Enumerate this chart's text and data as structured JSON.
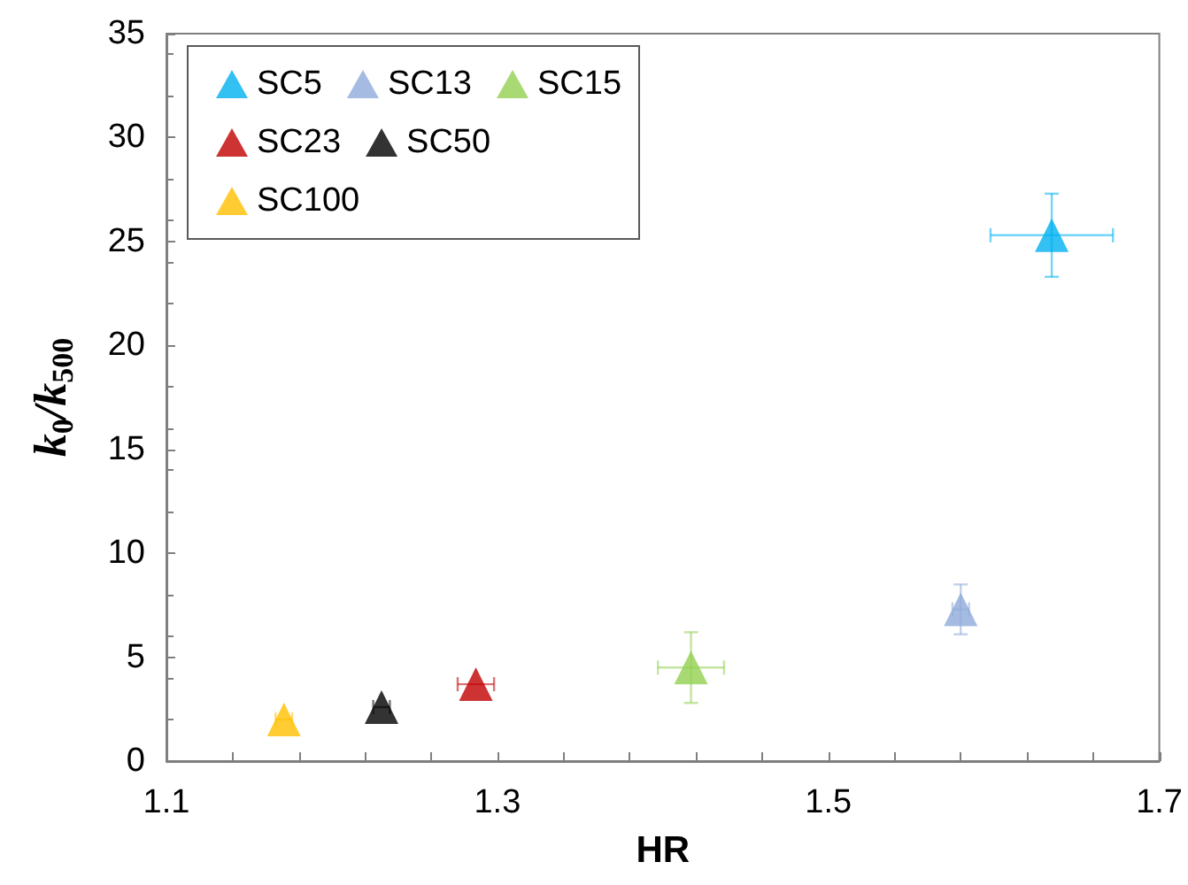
{
  "chart_data": {
    "type": "scatter",
    "xlabel": "HR",
    "ylabel": "k$_{0}$/k$_{500}$",
    "marker": "triangle",
    "legend": "top left",
    "grid": false,
    "xlim": [
      1.1,
      1.7
    ],
    "ylim": [
      0,
      35
    ],
    "xticks": [
      1.1,
      {
        "value": 1.14,
        "label": null
      },
      {
        "value": 1.18,
        "label": null
      },
      {
        "value": 1.22,
        "label": null
      },
      {
        "value": 1.26,
        "label": null
      },
      1.3,
      {
        "value": 1.34,
        "label": null
      },
      {
        "value": 1.38,
        "label": null
      },
      {
        "value": 1.42,
        "label": null
      },
      {
        "value": 1.46,
        "label": null
      },
      1.5,
      {
        "value": 1.54,
        "label": null
      },
      {
        "value": 1.58,
        "label": null
      },
      {
        "value": 1.62,
        "label": null
      },
      {
        "value": 1.66,
        "label": null
      },
      1.7
    ],
    "yticks": [
      0,
      5,
      10,
      15,
      20,
      25,
      30,
      35
    ],
    "series": [
      {
        "name": "SC5",
        "color": "#00b0f0",
        "x": [
          1.635
        ],
        "values": [
          25.3
        ],
        "errors": [
          2.0
        ],
        "xerrors": [
          0.037
        ]
      },
      {
        "name": "SC13",
        "color": "#8eaadb",
        "x": [
          1.58
        ],
        "values": [
          7.3
        ],
        "errors": [
          1.2
        ],
        "xerrors": [
          0.005
        ]
      },
      {
        "name": "SC15",
        "color": "#92d050",
        "x": [
          1.417
        ],
        "values": [
          4.5
        ],
        "errors": [
          1.7
        ],
        "xerrors": [
          0.02
        ]
      },
      {
        "name": "SC23",
        "color": "#c00000",
        "x": [
          1.287
        ],
        "values": [
          3.7
        ],
        "errors": [
          null
        ],
        "xerrors": [
          0.011
        ]
      },
      {
        "name": "SC50",
        "color": "#000000",
        "x": [
          1.23
        ],
        "values": [
          2.6
        ],
        "errors": [
          null
        ],
        "xerrors": [
          0.005
        ]
      },
      {
        "name": "SC100",
        "color": "#ffc000",
        "x": [
          1.171
        ],
        "values": [
          2.0
        ],
        "errors": [
          null
        ],
        "xerrors": [
          0.005
        ]
      }
    ]
  }
}
